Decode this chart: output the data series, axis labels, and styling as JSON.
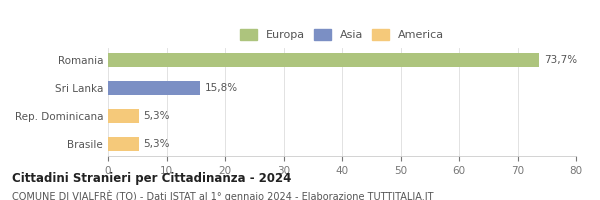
{
  "categories": [
    "Brasile",
    "Rep. Dominicana",
    "Sri Lanka",
    "Romania"
  ],
  "values": [
    5.3,
    5.3,
    15.8,
    73.7
  ],
  "labels": [
    "5,3%",
    "5,3%",
    "15,8%",
    "73,7%"
  ],
  "colors": [
    "#f5c97a",
    "#f5c97a",
    "#7b8fc4",
    "#adc47d"
  ],
  "legend": [
    {
      "label": "Europa",
      "color": "#adc47d"
    },
    {
      "label": "Asia",
      "color": "#7b8fc4"
    },
    {
      "label": "America",
      "color": "#f5c97a"
    }
  ],
  "xlim": [
    0,
    80
  ],
  "xticks": [
    0,
    10,
    20,
    30,
    40,
    50,
    60,
    70,
    80
  ],
  "title": "Cittadini Stranieri per Cittadinanza - 2024",
  "subtitle": "COMUNE DI VIALFRÈ (TO) - Dati ISTAT al 1° gennaio 2024 - Elaborazione TUTTITALIA.IT",
  "title_fontsize": 8.5,
  "subtitle_fontsize": 7.0,
  "label_fontsize": 7.5,
  "tick_fontsize": 7.5,
  "legend_fontsize": 8,
  "bar_height": 0.5,
  "bg_color": "#ffffff"
}
